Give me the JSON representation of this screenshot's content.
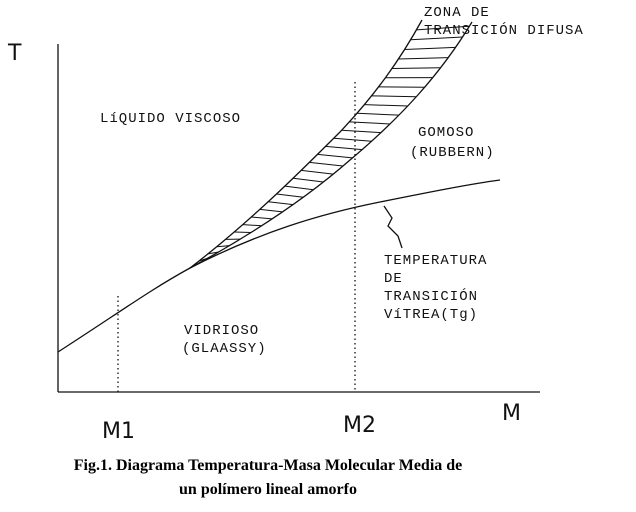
{
  "diagram": {
    "axes": {
      "y_label": "T",
      "x_label": "M",
      "m1": "M1",
      "m2": "M2"
    },
    "regions": {
      "liquid": "LíQUIDO VISCOSO",
      "rubber": [
        "GOMOSO",
        "(RUBBERN)"
      ],
      "zone": [
        "ZONA DE",
        "TRANSICIÓN DIFUSA"
      ],
      "glass": [
        "VIDRIOSO",
        "(GLAASSY)"
      ],
      "tg": [
        "TEMPERATURA",
        "DE",
        "TRANSICIÓN",
        "VíTREA(Tg)"
      ]
    },
    "caption": [
      "Fig.1. Diagrama Temperatura-Masa Molecular Media de",
      "un polímero lineal amorfo"
    ]
  }
}
